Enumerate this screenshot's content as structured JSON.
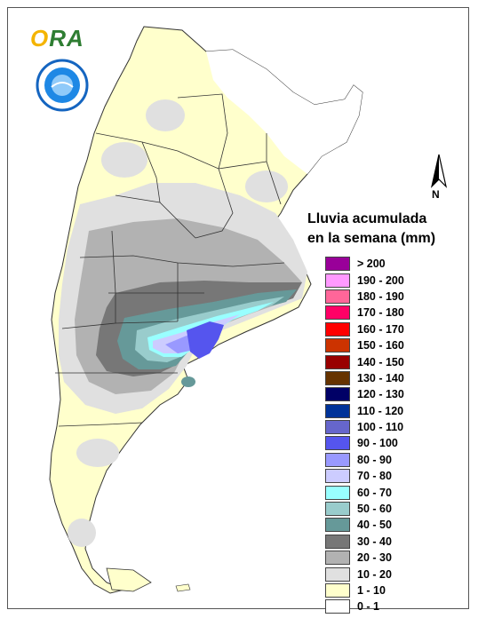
{
  "logo": {
    "text_o": "O",
    "text_ra": "RA"
  },
  "north_label": "N",
  "legend": {
    "title_line1": "Lluvia acumulada",
    "title_line2": "en la semana (mm)",
    "items": [
      {
        "label": "> 200",
        "color": "#990099"
      },
      {
        "label": "190 - 200",
        "color": "#ff99ff"
      },
      {
        "label": "180 - 190",
        "color": "#ff6699"
      },
      {
        "label": "170 - 180",
        "color": "#ff0066"
      },
      {
        "label": "160 - 170",
        "color": "#ff0000"
      },
      {
        "label": "150 - 160",
        "color": "#cc3300"
      },
      {
        "label": "140 - 150",
        "color": "#990000"
      },
      {
        "label": "130 - 140",
        "color": "#663300"
      },
      {
        "label": "120 - 130",
        "color": "#000066"
      },
      {
        "label": "110 - 120",
        "color": "#003399"
      },
      {
        "label": "100 - 110",
        "color": "#6666cc"
      },
      {
        "label": "90 - 100",
        "color": "#5555ee"
      },
      {
        "label": "80 - 90",
        "color": "#9999ff"
      },
      {
        "label": "70 - 80",
        "color": "#ccccff"
      },
      {
        "label": "60 - 70",
        "color": "#99ffff"
      },
      {
        "label": "50 - 60",
        "color": "#99cccc"
      },
      {
        "label": "40 - 50",
        "color": "#669999"
      },
      {
        "label": "30 - 40",
        "color": "#777777"
      },
      {
        "label": "20 - 30",
        "color": "#b2b2b2"
      },
      {
        "label": "10 - 20",
        "color": "#e0e0e0"
      },
      {
        "label": "1 - 10",
        "color": "#ffffcc"
      },
      {
        "label": "0 - 1",
        "color": "#ffffff"
      }
    ]
  }
}
